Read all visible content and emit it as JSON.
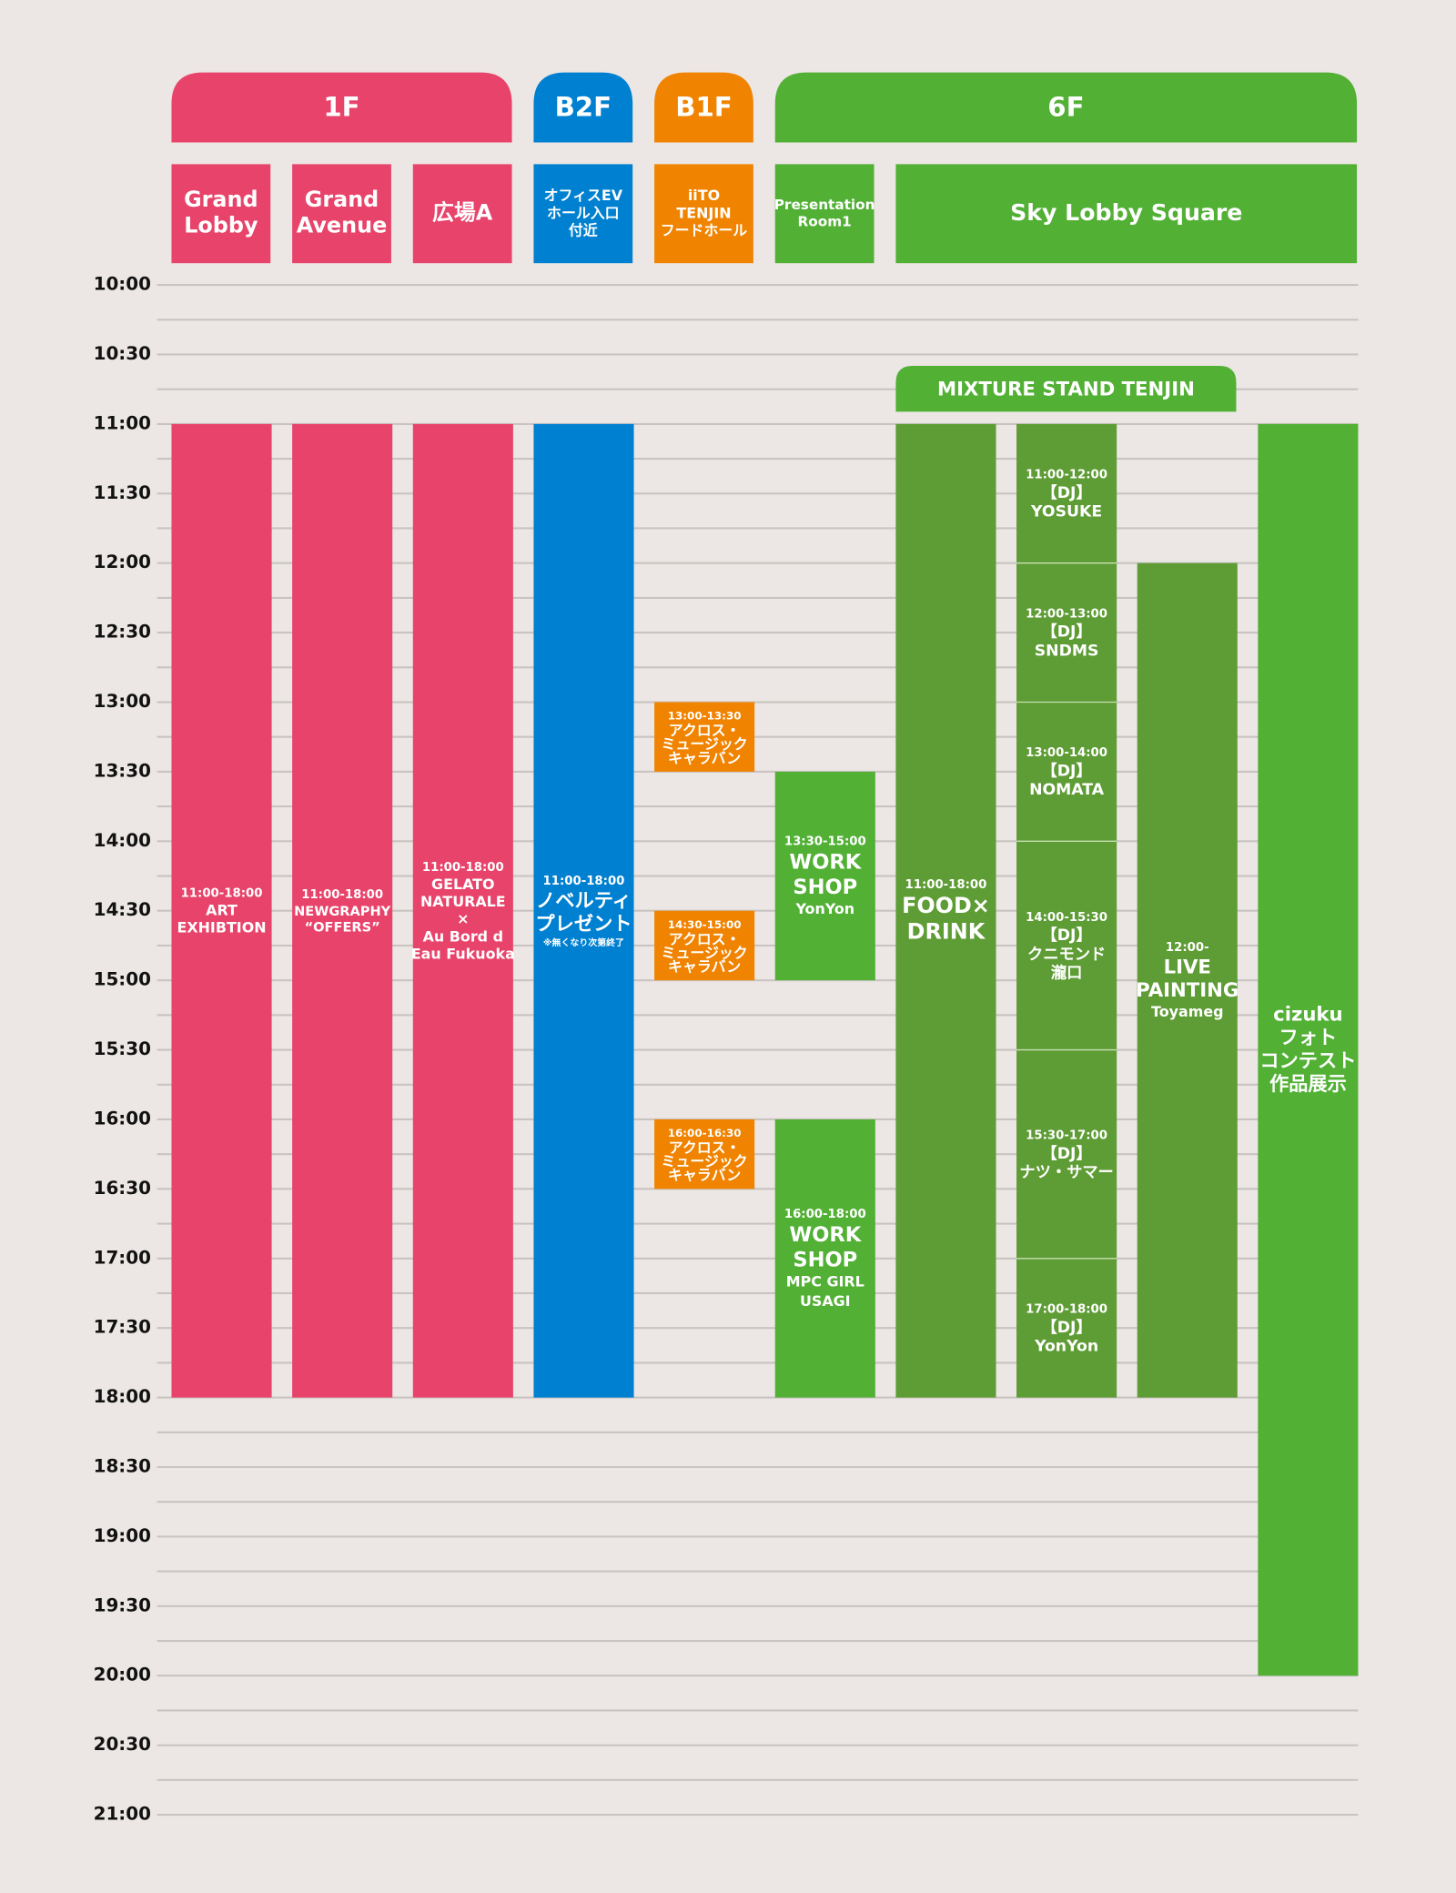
{
  "floors": [
    "1F",
    "B2F",
    "B1F",
    "6F"
  ],
  "rooms": [
    [
      "Grand",
      "Lobby"
    ],
    [
      "Grand",
      "Avenue"
    ],
    [
      "広場A"
    ],
    [
      "オフィスEV",
      "ホール入口",
      "付近"
    ],
    [
      "iiTO",
      "TENJIN",
      "フードホール"
    ],
    [
      "Presentation",
      "Room1"
    ],
    [
      "Sky Lobby Square"
    ]
  ],
  "stage": "MIXTURE STAND TENJIN",
  "times": [
    "10:00",
    "10:30",
    "11:00",
    "11:30",
    "12:00",
    "12:30",
    "13:00",
    "13:30",
    "14:00",
    "14:30",
    "15:00",
    "15:30",
    "16:00",
    "16:30",
    "17:00",
    "17:30",
    "18:00",
    "18:30",
    "19:00",
    "19:30",
    "20:00",
    "20:30",
    "21:00"
  ],
  "events": [
    {
      "time": "11:00-18:00",
      "title": [
        "ART",
        "EXHIBTION"
      ]
    },
    {
      "time": "11:00-18:00",
      "title": [
        "NEWGRAPHY",
        "“OFFERS”"
      ]
    },
    {
      "time": "11:00-18:00",
      "title": [
        "GELATO",
        "NATURALE",
        "×",
        "Au Bord d",
        "Eau Fukuoka"
      ]
    },
    {
      "time": "11:00-18:00",
      "title": [
        "ノベルティ",
        "プレゼント"
      ],
      "note": "※無くなり次第終了"
    },
    {
      "time": "13:00-13:30",
      "title": [
        "アクロス・",
        "ミュージック",
        "キャラバン"
      ]
    },
    {
      "time": "14:30-15:00",
      "title": [
        "アクロス・",
        "ミュージック",
        "キャラバン"
      ]
    },
    {
      "time": "16:00-16:30",
      "title": [
        "アクロス・",
        "ミュージック",
        "キャラバン"
      ]
    },
    {
      "time": "13:30-15:00",
      "title": [
        "WORK",
        "SHOP"
      ],
      "sub": [
        "YonYon"
      ]
    },
    {
      "time": "16:00-18:00",
      "title": [
        "WORK",
        "SHOP"
      ],
      "sub": [
        "MPC GIRL",
        "USAGI"
      ]
    },
    {
      "time": "11:00-18:00",
      "title": [
        "FOOD×",
        "DRINK"
      ]
    },
    {
      "time": "11:00-12:00",
      "title": [
        "【DJ】",
        "YOSUKE"
      ]
    },
    {
      "time": "12:00-13:00",
      "title": [
        "【DJ】",
        "SNDMS"
      ]
    },
    {
      "time": "13:00-14:00",
      "title": [
        "【DJ】",
        "NOMATA"
      ]
    },
    {
      "time": "14:00-15:30",
      "title": [
        "【DJ】",
        "クニモンド",
        "瀧口"
      ]
    },
    {
      "time": "15:30-17:00",
      "title": [
        "【DJ】",
        "ナツ・サマー"
      ]
    },
    {
      "time": "17:00-18:00",
      "title": [
        "【DJ】",
        "YonYon"
      ]
    },
    {
      "time": "12:00-",
      "title": [
        "LIVE",
        "PAINTING"
      ],
      "sub": [
        "Toyameg"
      ]
    },
    {
      "title": [
        "cizuku",
        "フォト",
        "コンテスト",
        "作品展示"
      ]
    }
  ]
}
